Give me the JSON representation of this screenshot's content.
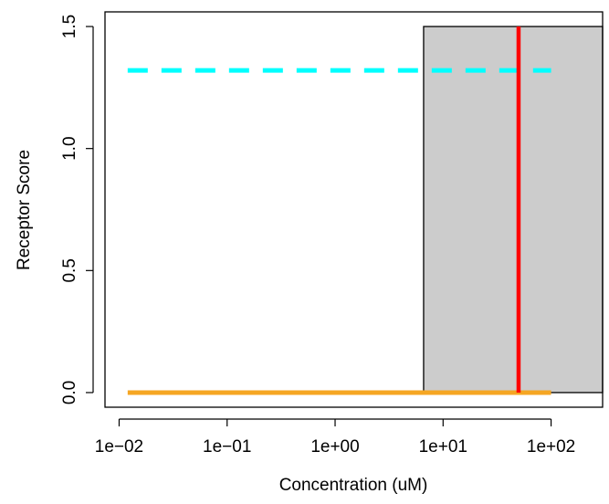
{
  "chart_data": {
    "type": "line",
    "title": "",
    "xlabel": "Concentration (uM)",
    "ylabel": "Receptor Score",
    "x_scale": "log10",
    "xlim": [
      0.0074,
      300
    ],
    "ylim": [
      -0.06,
      1.56
    ],
    "x_ticks": [
      {
        "value": 0.01,
        "label": "1e−02"
      },
      {
        "value": 0.1,
        "label": "1e−01"
      },
      {
        "value": 1,
        "label": "1e+00"
      },
      {
        "value": 10,
        "label": "1e+01"
      },
      {
        "value": 100,
        "label": "1e+02"
      }
    ],
    "y_ticks": [
      {
        "value": 0.0,
        "label": "0.0"
      },
      {
        "value": 0.5,
        "label": "0.5"
      },
      {
        "value": 1.0,
        "label": "1.0"
      },
      {
        "value": 1.5,
        "label": "1.5"
      }
    ],
    "grid": false,
    "shaded_region": {
      "x_start": 6.6,
      "x_end": 300,
      "y_start": 0.0,
      "y_end": 1.5,
      "color": "#cccccc"
    },
    "vertical_line": {
      "x": 50,
      "y_start": 0.0,
      "y_end": 1.5,
      "color": "#ff0000"
    },
    "series": [
      {
        "style": "dashed",
        "color": "#00ffff",
        "x": [
          0.012,
          100
        ],
        "y": [
          1.32,
          1.32
        ]
      },
      {
        "style": "solid",
        "color": "#f5a623",
        "x": [
          0.012,
          100
        ],
        "y": [
          0.0,
          0.0
        ]
      }
    ]
  }
}
